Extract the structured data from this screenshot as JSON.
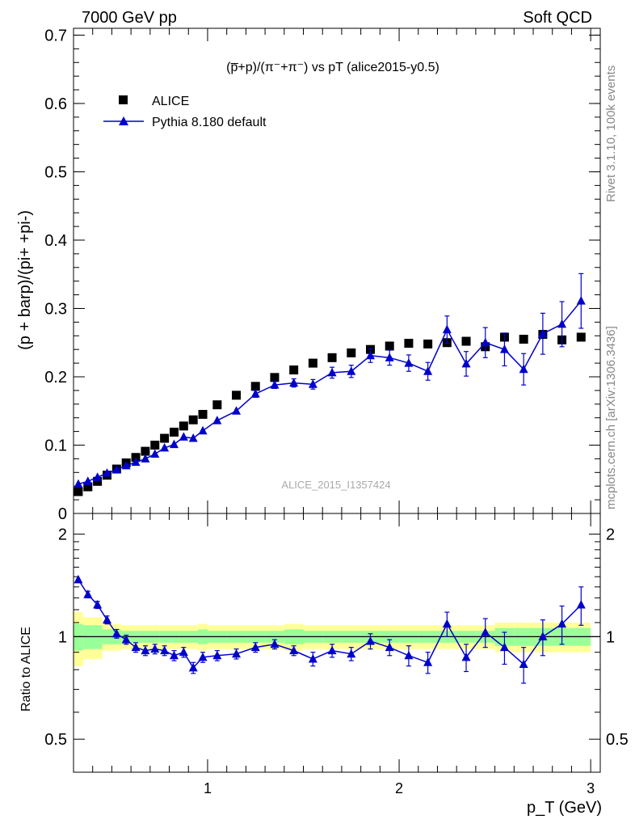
{
  "header": {
    "left": "7000 GeV pp",
    "right": "Soft QCD"
  },
  "side_labels": {
    "rivet": "Rivet 3.1.10,  100k events",
    "mcplots": "mcplots.cern.ch [arXiv:1306.3436]"
  },
  "watermark": "ALICE_2015_I1357424",
  "chart_data": [
    {
      "type": "scatter",
      "panel": "main",
      "title": "(p̅+p)/(π⁻+π⁻) vs pT (alice2015-y0.5)",
      "ylabel": "(p + barp)/(pi+ +pi-)",
      "xlim": [
        0.3,
        3.05
      ],
      "ylim": [
        0,
        0.71
      ],
      "x_ticks": [
        1,
        2,
        3
      ],
      "y_ticks": [
        0,
        0.1,
        0.2,
        0.3,
        0.4,
        0.5,
        0.6,
        0.7
      ],
      "y_tick_labels": [
        "0",
        "0.1",
        "0.2",
        "0.3",
        "0.4",
        "0.5",
        "0.6",
        "0.7"
      ],
      "legend_position": "top-left",
      "series": [
        {
          "name": "ALICE",
          "marker": "square",
          "color": "#000000",
          "x": [
            0.325,
            0.375,
            0.425,
            0.475,
            0.525,
            0.575,
            0.625,
            0.675,
            0.725,
            0.775,
            0.825,
            0.875,
            0.925,
            0.975,
            1.05,
            1.15,
            1.25,
            1.35,
            1.45,
            1.55,
            1.65,
            1.75,
            1.85,
            1.95,
            2.05,
            2.15,
            2.25,
            2.35,
            2.45,
            2.55,
            2.65,
            2.75,
            2.85,
            2.95
          ],
          "y": [
            0.032,
            0.039,
            0.047,
            0.056,
            0.065,
            0.074,
            0.082,
            0.091,
            0.1,
            0.11,
            0.119,
            0.128,
            0.137,
            0.145,
            0.159,
            0.173,
            0.186,
            0.199,
            0.21,
            0.22,
            0.228,
            0.235,
            0.24,
            0.245,
            0.249,
            0.248,
            0.25,
            0.252,
            0.244,
            0.258,
            0.255,
            0.262,
            0.254,
            0.258
          ]
        },
        {
          "name": "Pythia 8.180 default",
          "marker": "triangle",
          "color": "#0000cc",
          "x": [
            0.325,
            0.375,
            0.425,
            0.475,
            0.525,
            0.575,
            0.625,
            0.675,
            0.725,
            0.775,
            0.825,
            0.875,
            0.925,
            0.975,
            1.05,
            1.15,
            1.25,
            1.35,
            1.45,
            1.55,
            1.65,
            1.75,
            1.85,
            1.95,
            2.05,
            2.15,
            2.25,
            2.35,
            2.45,
            2.55,
            2.65,
            2.75,
            2.85,
            2.95
          ],
          "y": [
            0.043,
            0.047,
            0.053,
            0.059,
            0.064,
            0.07,
            0.075,
            0.08,
            0.087,
            0.096,
            0.101,
            0.112,
            0.11,
            0.121,
            0.136,
            0.15,
            0.175,
            0.188,
            0.191,
            0.189,
            0.206,
            0.208,
            0.231,
            0.228,
            0.22,
            0.208,
            0.269,
            0.219,
            0.25,
            0.24,
            0.211,
            0.263,
            0.277,
            0.311
          ],
          "yerr": [
            0.002,
            0.002,
            0.002,
            0.002,
            0.002,
            0.002,
            0.002,
            0.002,
            0.002,
            0.003,
            0.003,
            0.003,
            0.003,
            0.003,
            0.004,
            0.004,
            0.005,
            0.005,
            0.006,
            0.007,
            0.008,
            0.009,
            0.01,
            0.011,
            0.012,
            0.013,
            0.02,
            0.018,
            0.022,
            0.024,
            0.023,
            0.03,
            0.033,
            0.04
          ]
        }
      ]
    },
    {
      "type": "line",
      "panel": "ratio",
      "ylabel": "Ratio to ALICE",
      "xlabel": "p_T (GeV)",
      "xlim": [
        0.3,
        3.05
      ],
      "ylim": [
        0.4,
        2.3
      ],
      "log_scale_y": true,
      "y_ticks": [
        0.5,
        1,
        2
      ],
      "y_tick_labels": [
        "0.5",
        "1",
        "2"
      ],
      "reference_line": 1,
      "x": [
        0.325,
        0.375,
        0.425,
        0.475,
        0.525,
        0.575,
        0.625,
        0.675,
        0.725,
        0.775,
        0.825,
        0.875,
        0.925,
        0.975,
        1.05,
        1.15,
        1.25,
        1.35,
        1.45,
        1.55,
        1.65,
        1.75,
        1.85,
        1.95,
        2.05,
        2.15,
        2.25,
        2.35,
        2.45,
        2.55,
        2.65,
        2.75,
        2.85,
        2.95
      ],
      "ratio": [
        1.47,
        1.33,
        1.24,
        1.12,
        1.02,
        0.98,
        0.93,
        0.91,
        0.92,
        0.91,
        0.88,
        0.9,
        0.81,
        0.87,
        0.88,
        0.89,
        0.93,
        0.95,
        0.91,
        0.86,
        0.91,
        0.89,
        0.97,
        0.93,
        0.88,
        0.84,
        1.09,
        0.87,
        1.03,
        0.93,
        0.83,
        1.0,
        1.09,
        1.24
      ],
      "ratio_err": [
        0.03,
        0.03,
        0.03,
        0.03,
        0.03,
        0.03,
        0.03,
        0.03,
        0.03,
        0.03,
        0.03,
        0.03,
        0.03,
        0.03,
        0.03,
        0.03,
        0.03,
        0.03,
        0.03,
        0.04,
        0.04,
        0.04,
        0.05,
        0.05,
        0.06,
        0.06,
        0.09,
        0.08,
        0.1,
        0.1,
        0.1,
        0.12,
        0.14,
        0.16
      ],
      "band_x_edges": [
        0.3,
        0.35,
        0.45,
        0.55,
        0.65,
        0.75,
        0.85,
        0.95,
        1.0,
        1.1,
        1.2,
        1.3,
        1.4,
        1.5,
        1.6,
        1.7,
        1.8,
        1.9,
        2.0,
        2.1,
        2.2,
        2.3,
        2.4,
        2.5,
        2.6,
        2.7,
        2.8,
        2.9,
        3.0
      ],
      "band_inner": [
        0.09,
        0.08,
        0.05,
        0.04,
        0.04,
        0.04,
        0.04,
        0.05,
        0.04,
        0.04,
        0.04,
        0.04,
        0.05,
        0.04,
        0.04,
        0.04,
        0.04,
        0.04,
        0.04,
        0.04,
        0.04,
        0.04,
        0.04,
        0.06,
        0.06,
        0.06,
        0.06,
        0.06
      ],
      "band_outer": [
        0.18,
        0.14,
        0.09,
        0.08,
        0.08,
        0.08,
        0.08,
        0.09,
        0.08,
        0.08,
        0.08,
        0.08,
        0.09,
        0.08,
        0.08,
        0.08,
        0.08,
        0.08,
        0.08,
        0.08,
        0.08,
        0.08,
        0.08,
        0.1,
        0.1,
        0.1,
        0.1,
        0.1
      ],
      "band_inner_color": "#99ff99",
      "band_outer_color": "#ffff99",
      "x_ticks": [
        1,
        2,
        3
      ]
    }
  ]
}
